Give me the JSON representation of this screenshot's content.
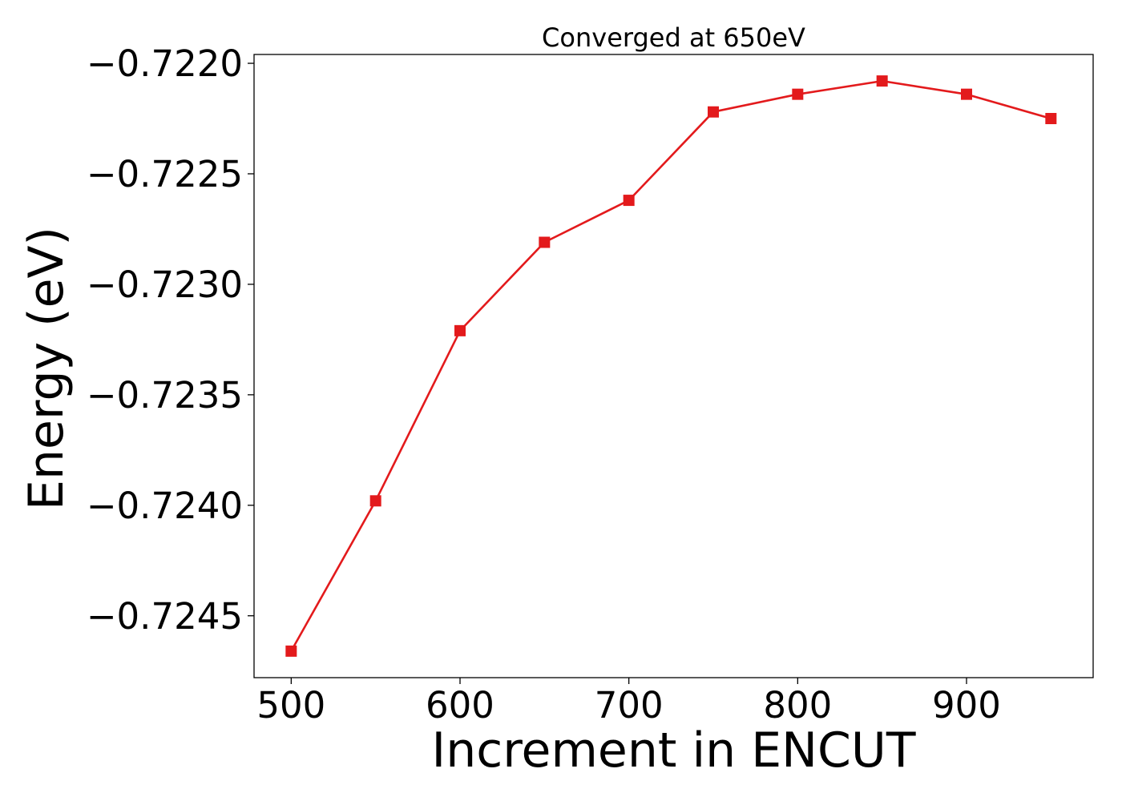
{
  "chart_data": {
    "type": "line",
    "title": "Converged at 650eV",
    "xlabel": "Increment in ENCUT",
    "ylabel": "Energy (eV)",
    "x": [
      500,
      550,
      600,
      650,
      700,
      750,
      800,
      850,
      900,
      950
    ],
    "xlim": [
      478,
      975
    ],
    "ylim": [
      -0.72478,
      -0.72196
    ],
    "x_ticks": [
      500,
      600,
      700,
      800,
      900
    ],
    "x_tick_labels": [
      "500",
      "600",
      "700",
      "800",
      "900"
    ],
    "y_ticks": [
      -0.722,
      -0.7225,
      -0.723,
      -0.7235,
      -0.724,
      -0.7245
    ],
    "y_tick_labels": [
      "−0.7220",
      "−0.7225",
      "−0.7230",
      "−0.7235",
      "−0.7240",
      "−0.7245"
    ],
    "grid": false,
    "series": [
      {
        "color": "#e31a1c",
        "marker": "square",
        "values": [
          -0.72466,
          -0.72398,
          -0.72321,
          -0.72281,
          -0.72262,
          -0.72222,
          -0.72214,
          -0.72208,
          -0.72214,
          -0.72225
        ]
      }
    ]
  }
}
